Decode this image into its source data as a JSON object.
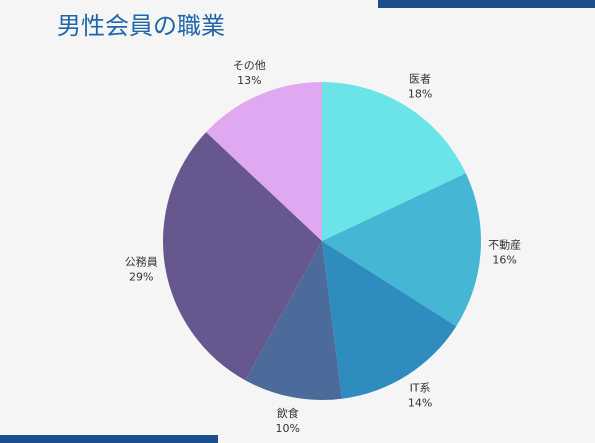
{
  "chart_data": {
    "type": "pie",
    "title": "男性会員の職業",
    "categories": [
      "医者",
      "不動産",
      "IT系",
      "飲食",
      "公務員",
      "その他"
    ],
    "values": [
      18,
      16,
      14,
      10,
      29,
      13
    ],
    "value_labels": [
      "18%",
      "16%",
      "14%",
      "10%",
      "29%",
      "13%"
    ],
    "colors": [
      "#6ae4e8",
      "#45b6d4",
      "#2f8cbf",
      "#4d6b9a",
      "#66588f",
      "#e0a8f0"
    ]
  }
}
